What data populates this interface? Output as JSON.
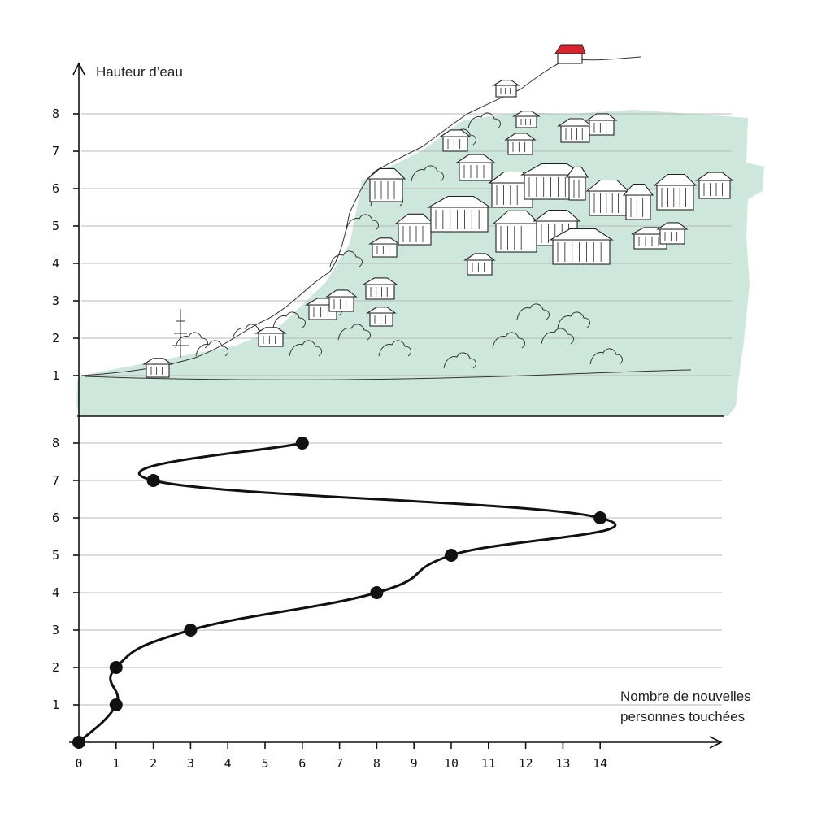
{
  "chart_data": {
    "type": "line",
    "top_panel": {
      "ylabel": "Hauteur d’eau",
      "yticks": [
        "1",
        "2",
        "3",
        "4",
        "5",
        "6",
        "7",
        "8"
      ],
      "ylim": [
        0,
        8.5
      ],
      "water_fill_color": "#cde7dc",
      "roof_accent_color": "#d9232d"
    },
    "bottom_panel": {
      "xlabel_line1": "Nombre de nouvelles",
      "xlabel_line2": "personnes touchées",
      "yticks": [
        "1",
        "2",
        "3",
        "4",
        "5",
        "6",
        "7",
        "8"
      ],
      "xticks": [
        "0",
        "1",
        "2",
        "3",
        "4",
        "5",
        "6",
        "7",
        "8",
        "9",
        "10",
        "11",
        "12",
        "13",
        "14"
      ],
      "xlim": [
        0,
        17
      ],
      "ylim": [
        0,
        8.5
      ],
      "points": [
        {
          "x": 0,
          "y": 0
        },
        {
          "x": 1,
          "y": 1
        },
        {
          "x": 1,
          "y": 2
        },
        {
          "x": 3,
          "y": 3
        },
        {
          "x": 8,
          "y": 4
        },
        {
          "x": 10,
          "y": 5
        },
        {
          "x": 14,
          "y": 6
        },
        {
          "x": 2,
          "y": 7
        },
        {
          "x": 6,
          "y": 8
        }
      ],
      "line_color": "#111111",
      "marker_color": "#111111"
    }
  }
}
